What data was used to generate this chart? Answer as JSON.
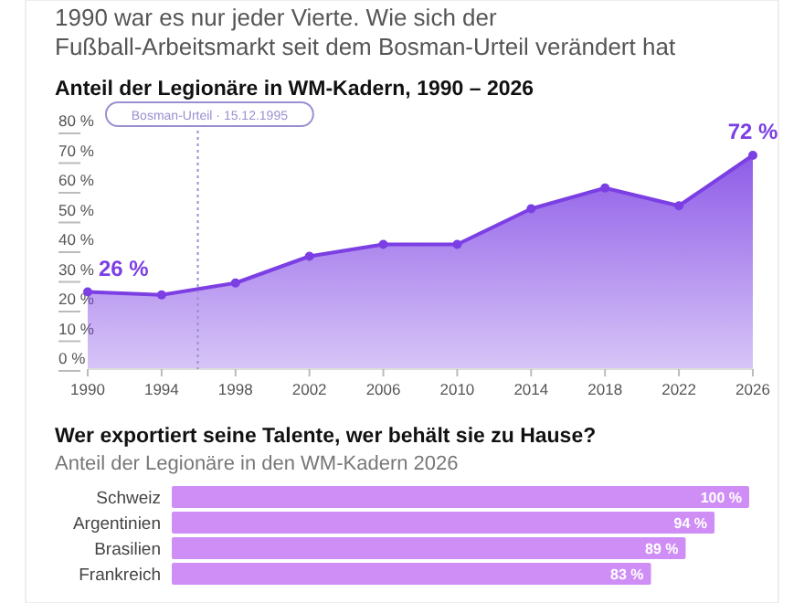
{
  "chart_data": [
    {
      "type": "area",
      "subtitle": "1990 war es nur jeder Vierte. Wie sich der Fußball-Arbeitsmarkt seit dem Bosman-Urteil verändert hat",
      "title": "Anteil der Legionäre in WM-Kadern, 1990 – 2026",
      "x": [
        1990,
        1994,
        1998,
        2002,
        2006,
        2010,
        2014,
        2018,
        2022,
        2026
      ],
      "series": [
        {
          "color": "#7b3fe4",
          "values": [
            26,
            25,
            29,
            38,
            42,
            42,
            54,
            61,
            55,
            72
          ],
          "value_labels": [
            "26 %",
            null,
            null,
            null,
            null,
            null,
            null,
            null,
            null,
            "72 %"
          ]
        }
      ],
      "xlim": [
        1990,
        2026
      ],
      "xticks": [
        1990,
        1994,
        1998,
        2002,
        2006,
        2010,
        2014,
        2018,
        2022,
        2026
      ],
      "ylim": [
        0,
        80
      ],
      "yticks": [
        {
          "value": 0,
          "label": "0 %"
        },
        {
          "value": 10,
          "label": "10 %"
        },
        {
          "value": 20,
          "label": "20 %"
        },
        {
          "value": 30,
          "label": "30 %"
        },
        {
          "value": 40,
          "label": "40 %"
        },
        {
          "value": 50,
          "label": "50 %"
        },
        {
          "value": 60,
          "label": "60 %"
        },
        {
          "value": 70,
          "label": "70 %"
        },
        {
          "value": 80,
          "label": "80 %"
        }
      ],
      "marker": "circle",
      "grid": false,
      "ref_lines": [
        {
          "axis": "x",
          "value": 1995.96,
          "label": "Bosman-Urteil · 15.12.1995",
          "line_style": "dotted",
          "color": "#9b8fd0"
        }
      ]
    },
    {
      "type": "bar",
      "orientation": "horizontal",
      "title": "Wer exportiert seine Talente, wer behält sie zu Hause?",
      "subtitle": "Anteil der Legionäre in den WM-Kadern 2026",
      "categories": [
        "Schweiz",
        "Argentinien",
        "Brasilien",
        "Frankreich"
      ],
      "values": [
        100,
        94,
        89,
        83
      ],
      "value_labels": [
        "100 %",
        "94 %",
        "89 %",
        "83 %"
      ],
      "color": "#cf8ef5",
      "xlim": [
        0,
        100
      ],
      "tick_labels": "y"
    }
  ]
}
